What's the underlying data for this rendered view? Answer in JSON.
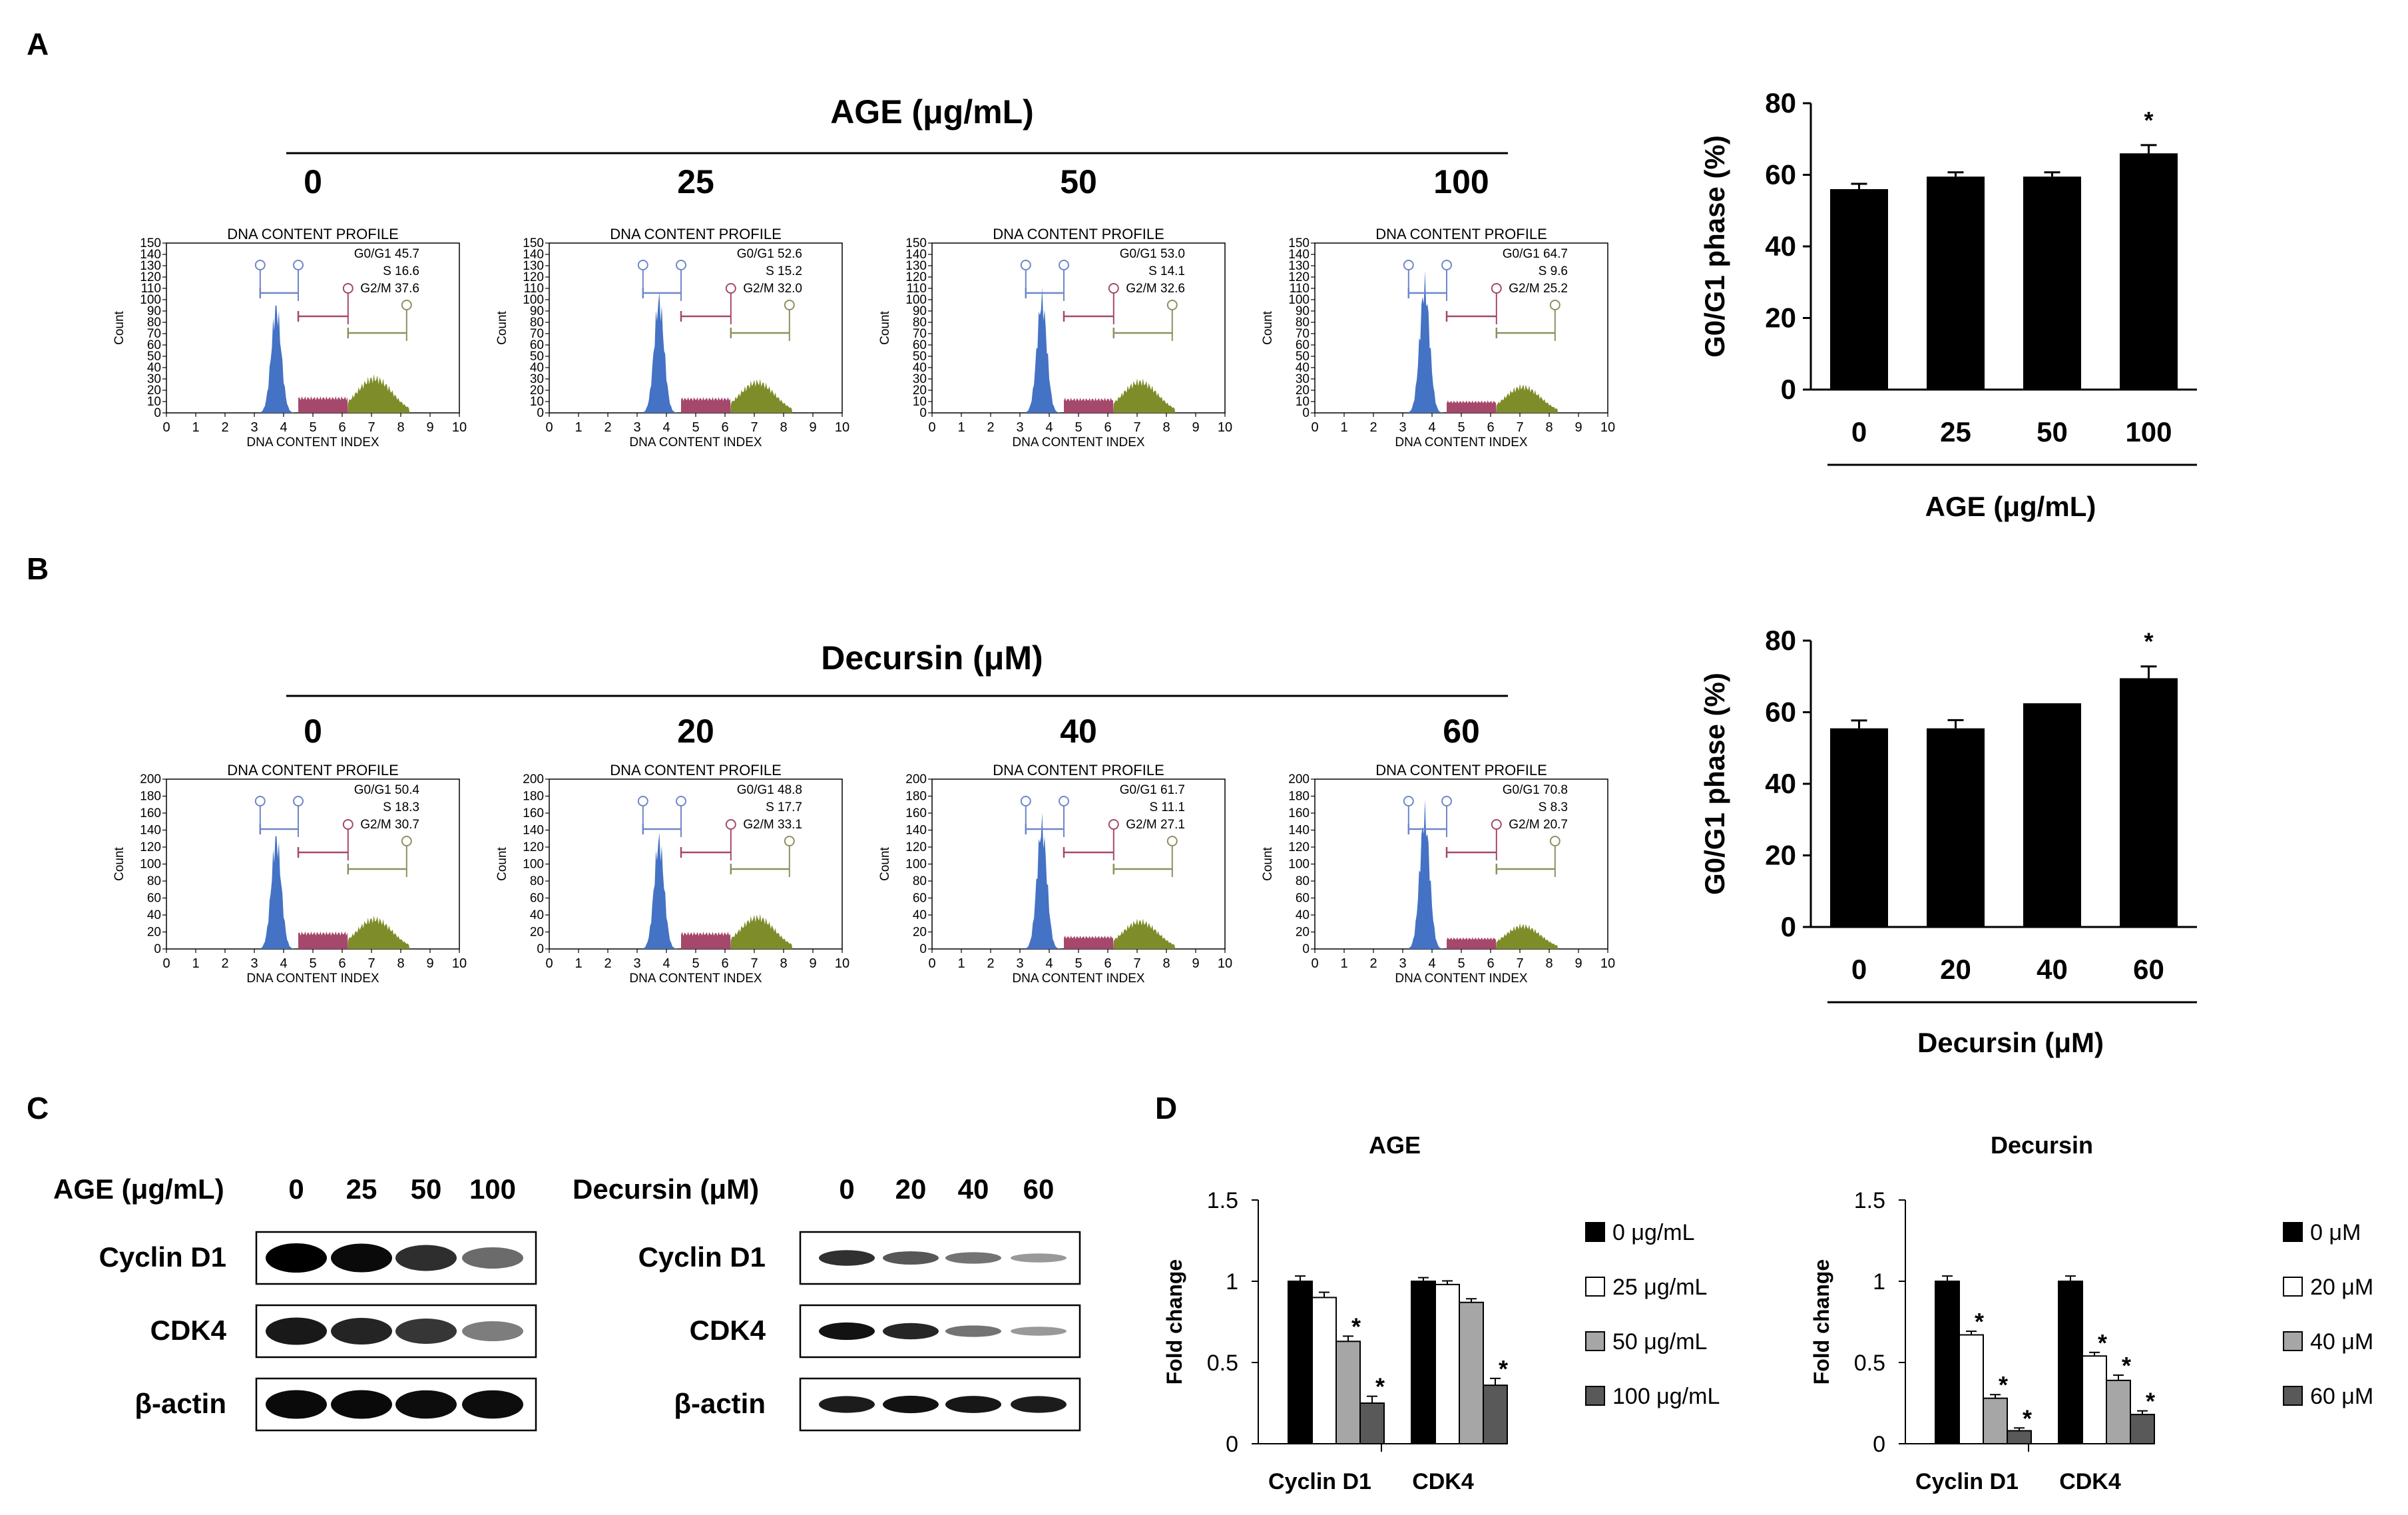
{
  "panels": {
    "A": "A",
    "B": "B",
    "C": "C",
    "D": "D"
  },
  "flow_profile_title": "DNA CONTENT PROFILE",
  "flow_x_label": "DNA CONTENT INDEX",
  "flow_y_label": "Count",
  "flow_x_ticks": [
    "0",
    "1",
    "2",
    "3",
    "4",
    "5",
    "6",
    "7",
    "8",
    "9",
    "10"
  ],
  "flow_A": {
    "header": "AGE (μg/mL)",
    "y_ticks": [
      "150",
      "140",
      "130",
      "120",
      "110",
      "100",
      "90",
      "80",
      "70",
      "60",
      "50",
      "40",
      "30",
      "20",
      "10",
      "0"
    ],
    "samples": [
      {
        "conc": "0",
        "g0g1": "G0/G1 45.7",
        "s": "S 16.6",
        "g2m": "G2/M 37.6"
      },
      {
        "conc": "25",
        "g0g1": "G0/G1 52.6",
        "s": "S 15.2",
        "g2m": "G2/M 32.0"
      },
      {
        "conc": "50",
        "g0g1": "G0/G1 53.0",
        "s": "S 14.1",
        "g2m": "G2/M 32.6"
      },
      {
        "conc": "100",
        "g0g1": "G0/G1 64.7",
        "s": "S 9.6",
        "g2m": "G2/M 25.2"
      }
    ]
  },
  "flow_B": {
    "header": "Decursin (μM)",
    "y_ticks": [
      "200",
      "180",
      "160",
      "140",
      "120",
      "100",
      "80",
      "60",
      "40",
      "20",
      "0"
    ],
    "samples": [
      {
        "conc": "0",
        "g0g1": "G0/G1 50.4",
        "s": "S 18.3",
        "g2m": "G2/M 30.7"
      },
      {
        "conc": "20",
        "g0g1": "G0/G1 48.8",
        "s": "S 17.7",
        "g2m": "G2/M 33.1"
      },
      {
        "conc": "40",
        "g0g1": "G0/G1 61.7",
        "s": "S 11.1",
        "g2m": "G2/M 27.1"
      },
      {
        "conc": "60",
        "g0g1": "G0/G1 70.8",
        "s": "S 8.3",
        "g2m": "G2/M 20.7"
      }
    ]
  },
  "western": {
    "age_label": "AGE (μg/mL)",
    "age_concs": [
      "0",
      "25",
      "50",
      "100"
    ],
    "dec_label": "Decursin (μM)",
    "dec_concs": [
      "0",
      "20",
      "40",
      "60"
    ],
    "rows": [
      "Cyclin D1",
      "CDK4",
      "β-actin"
    ]
  },
  "chart_data": [
    {
      "type": "bar",
      "categories": [
        "0",
        "25",
        "50",
        "100"
      ],
      "values": [
        56,
        59.5,
        59.5,
        66
      ],
      "errors": [
        1.5,
        1.2,
        1.2,
        2.3
      ],
      "significant": [
        false,
        false,
        false,
        true
      ],
      "ylabel": "G0/G1 phase (%)",
      "xlabel": "AGE (μg/mL)",
      "ylim": [
        0,
        80
      ],
      "yticks": [
        "0",
        "20",
        "40",
        "60",
        "80"
      ],
      "color": "#000000"
    },
    {
      "type": "bar",
      "categories": [
        "0",
        "20",
        "40",
        "60"
      ],
      "values": [
        55.5,
        55.5,
        62.5,
        69.5
      ],
      "errors": [
        2.2,
        2.3,
        0,
        3.3
      ],
      "significant": [
        false,
        false,
        false,
        true
      ],
      "ylabel": "G0/G1 phase (%)",
      "xlabel": "Decursin (μM)",
      "ylim": [
        0,
        80
      ],
      "yticks": [
        "0",
        "20",
        "40",
        "60",
        "80"
      ],
      "color": "#000000"
    },
    {
      "type": "bar",
      "title": "AGE",
      "categories": [
        "Cyclin D1",
        "CDK4"
      ],
      "ylabel": "Fold change",
      "ylim": [
        0,
        1.5
      ],
      "yticks": [
        "0",
        "0.5",
        "1",
        "1.5"
      ],
      "series": [
        {
          "name": "0 μg/mL",
          "color": "#000000",
          "values": [
            1.0,
            1.0
          ],
          "errors": [
            0.02,
            0.01
          ],
          "significant": [
            false,
            false
          ]
        },
        {
          "name": "25 μg/mL",
          "color": "#ffffff",
          "values": [
            0.9,
            0.98
          ],
          "errors": [
            0.02,
            0.01
          ],
          "significant": [
            false,
            false
          ]
        },
        {
          "name": "50 μg/mL",
          "color": "#a6a6a6",
          "values": [
            0.63,
            0.87
          ],
          "errors": [
            0.02,
            0.01
          ],
          "significant": [
            true,
            false
          ]
        },
        {
          "name": "100 μg/mL",
          "color": "#595959",
          "values": [
            0.25,
            0.36
          ],
          "errors": [
            0.03,
            0.03
          ],
          "significant": [
            true,
            true
          ]
        }
      ]
    },
    {
      "type": "bar",
      "title": "Decursin",
      "categories": [
        "Cyclin D1",
        "CDK4"
      ],
      "ylabel": "Fold change",
      "ylim": [
        0,
        1.5
      ],
      "yticks": [
        "0",
        "0.5",
        "1",
        "1.5"
      ],
      "series": [
        {
          "name": "0 μM",
          "color": "#000000",
          "values": [
            1.0,
            1.0
          ],
          "errors": [
            0.02,
            0.02
          ],
          "significant": [
            false,
            false
          ]
        },
        {
          "name": "20 μM",
          "color": "#ffffff",
          "values": [
            0.67,
            0.54
          ],
          "errors": [
            0.01,
            0.01
          ],
          "significant": [
            true,
            true
          ]
        },
        {
          "name": "40 μM",
          "color": "#a6a6a6",
          "values": [
            0.28,
            0.39
          ],
          "errors": [
            0.01,
            0.02
          ],
          "significant": [
            true,
            true
          ]
        },
        {
          "name": "60 μM",
          "color": "#595959",
          "values": [
            0.08,
            0.18
          ],
          "errors": [
            0.005,
            0.01
          ],
          "significant": [
            true,
            true
          ]
        }
      ]
    }
  ]
}
